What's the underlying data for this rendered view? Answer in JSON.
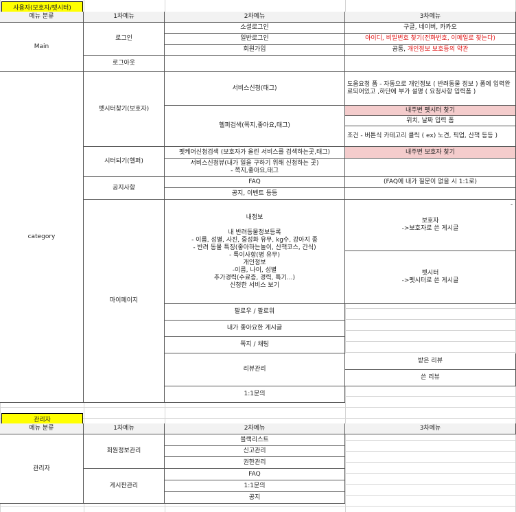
{
  "user_section": {
    "title": "사용자(보호자/펫시터)",
    "header": {
      "c1": "메뉴 분류",
      "c2": "1차메뉴",
      "c3": "2차메뉴",
      "c4": "3차메뉴"
    },
    "main": {
      "category": "Main",
      "login": "로그인",
      "social_login": "소셜로그인",
      "social_login_providers": "구글, 네이버, 카카오",
      "general_login": "일반로그인",
      "general_login_note": "아이디, 비밀번호 찾기(전화번호, 이메일로 찾는다)",
      "signup": "회원가입",
      "signup_note": "공통, 개인정보 보호등의 약관",
      "logout": "로그아웃"
    },
    "category": {
      "label": "category",
      "find_sitter": "펫시터찾기(보호자)",
      "service_request": "서비스신청(태그)",
      "service_request_note": "도움요청 폼 - 자동으로 개인정보 ( 반려동물 정보 ) 폼에 입력완료되어있고 ,하단에 부가 설명 ( 요청사항 입력폼 )",
      "helper_search": "헬퍼검색(쪽지,좋아요,태그)",
      "nearby_sitter": "내주변 펫시터 찾기",
      "location_date": "위치, 날짜 입력 폼",
      "conditions": "조건 - 버튼식 카테고리 클릭 ( ex) 노견, 픽업, 산책 등등 )",
      "become_sitter": "시터되기(헬퍼)",
      "petcare_search": "펫케어신청검색 (보호자가 올린 서비스를 검색하는곳,태그)",
      "nearby_guardian": "내주변 보호자 찾기",
      "service_view": "서비스신청뷰(내가 일을 구하기 위해 신청하는 곳)\n- 쪽지,좋아요,태그",
      "notice": "공지사항",
      "faq": "FAQ",
      "faq_note": "(FAQ에 내가 질문이 없을 시 1:1로)",
      "notice_events": "공지, 이벤트 등등",
      "mypage": "마이페이지",
      "my_info": "내정보\n\n내 반려동물정보등록\n- 이름, 성별, 사진, 중성화 유무, kg수, 강아지 종\n- 반려 동물 특징(좋아하는놀이, 산책코스, 간식)\n- 특이사항(병 유무)\n개인정보\n-이름, 나이, 성별\n추가경력(수료증, 경력, 특기...)\n신청한 서비스 보기",
      "guardian_board": "보호자\n->보호자로 쓴 게시글",
      "sitter_board": "펫시터\n->펫시터로 쓴 게시글",
      "follow": "팔로우 / 팔로워",
      "liked_posts": "내가 좋아요한 게시글",
      "messages": "쪽지 / 채팅",
      "review_mgmt": "리뷰관리",
      "received_reviews": "받은 리뷰",
      "written_reviews": "쓴 리뷰",
      "one_on_one": "1:1문의"
    }
  },
  "admin_section": {
    "title": "관리자",
    "header": {
      "c1": "메뉴 분류",
      "c2": "1차메뉴",
      "c3": "2차메뉴",
      "c4": "3차메뉴"
    },
    "category": "관리자",
    "member_mgmt": "회원정보관리",
    "blacklist": "블랙리스트",
    "report_mgmt": "신고관리",
    "permission_mgmt": "권한관리",
    "board_mgmt": "게시판관리",
    "faq": "FAQ",
    "one_on_one": "1:1문의",
    "notice": "공지"
  },
  "stray_mark": "-"
}
